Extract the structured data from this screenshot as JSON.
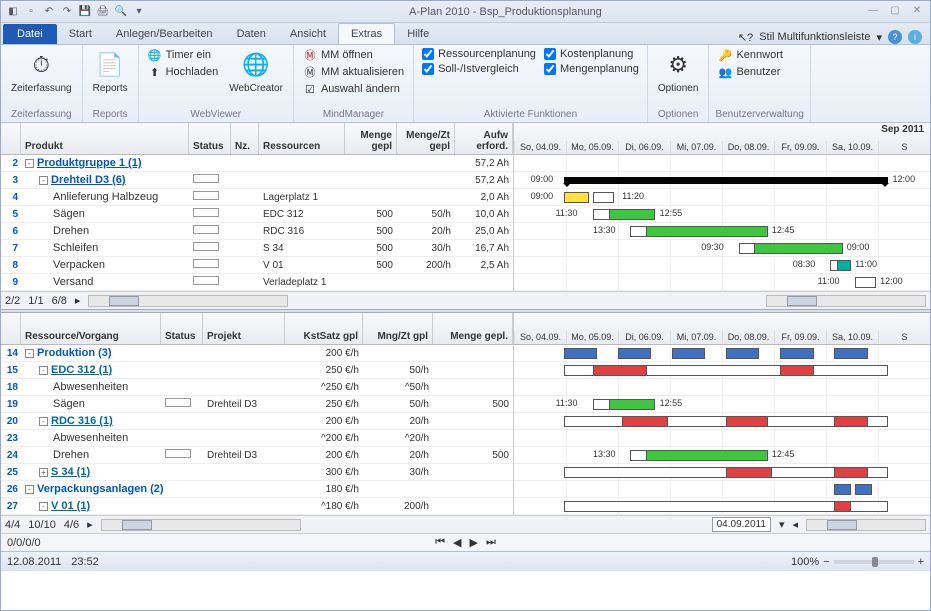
{
  "window": {
    "title": "A-Plan 2010 - Bsp_Produktionsplanung"
  },
  "tabs": {
    "file": "Datei",
    "items": [
      "Start",
      "Anlegen/Bearbeiten",
      "Daten",
      "Ansicht",
      "Extras",
      "Hilfe"
    ],
    "active": 4,
    "style_label": "Stil Multifunktionsleiste"
  },
  "ribbon": {
    "g0": {
      "label": "Zeiterfassung",
      "btn": "Zeiterfassung"
    },
    "g1": {
      "label": "Reports",
      "btn": "Reports"
    },
    "g2": {
      "label": "WebViewer",
      "btn": "WebCreator",
      "a": "Timer ein",
      "b": "Hochladen"
    },
    "g3": {
      "label": "MindManager",
      "a": "MM öffnen",
      "b": "MM aktualisieren",
      "c": "Auswahl ändern"
    },
    "g4": {
      "label": "Aktivierte Funktionen",
      "a": "Ressourcenplanung",
      "b": "Soll-/Istvergleich",
      "c": "Kostenplanung",
      "d": "Mengenplanung"
    },
    "g5": {
      "label": "Optionen",
      "btn": "Optionen"
    },
    "g6": {
      "label": "Benutzerverwaltung",
      "a": "Kennwort",
      "b": "Benutzer"
    }
  },
  "topgrid": {
    "hdr": {
      "c0": "Produkt",
      "c1": "Status",
      "c2": "Nz.",
      "c3": "Ressourcen",
      "c4": "Menge gepl",
      "c5": "Menge/Zt gepl",
      "c6": "Aufw erford."
    },
    "month": "Sep 2011",
    "days": [
      "So, 04.09.",
      "Mo, 05.09.",
      "Di, 06.09.",
      "Mi, 07.09.",
      "Do, 08.09.",
      "Fr, 09.09.",
      "Sa, 10.09.",
      "S"
    ],
    "rows": [
      {
        "n": "2",
        "ind": 0,
        "exp": "-",
        "name": "Produktgruppe 1 (1)",
        "cls": "grp",
        "m3": "57,2 Ah",
        "u": 1
      },
      {
        "n": "3",
        "ind": 1,
        "exp": "-",
        "name": "Drehteil D3 (6)",
        "cls": "grp",
        "stat": 1,
        "m3": "57,2 Ah",
        "u": 1
      },
      {
        "n": "4",
        "ind": 2,
        "name": "Anlieferung Halbzeug",
        "stat": 1,
        "res": "Lagerplatz 1",
        "m3": "2,0 Ah"
      },
      {
        "n": "5",
        "ind": 2,
        "name": "Sägen",
        "stat": 1,
        "res": "EDC 312",
        "m1": "500",
        "m2": "50/h",
        "m3": "10,0 Ah"
      },
      {
        "n": "6",
        "ind": 2,
        "name": "Drehen",
        "stat": 1,
        "res": "RDC 316",
        "m1": "500",
        "m2": "20/h",
        "m3": "25,0 Ah"
      },
      {
        "n": "7",
        "ind": 2,
        "name": "Schleifen",
        "stat": 1,
        "res": "S 34",
        "m1": "500",
        "m2": "30/h",
        "m3": "16,7 Ah"
      },
      {
        "n": "8",
        "ind": 2,
        "name": "Verpacken",
        "stat": 1,
        "res": "V 01",
        "m1": "500",
        "m2": "200/h",
        "m3": "2,5 Ah"
      },
      {
        "n": "9",
        "ind": 2,
        "name": "Versand",
        "stat": 1,
        "res": "Verladeplatz 1"
      }
    ],
    "gantt": [
      {
        "bars": []
      },
      {
        "bars": [
          {
            "t": "sum",
            "l": 12,
            "w": 78
          }
        ],
        "labels": [
          {
            "x": 4,
            "t": "09:00"
          },
          {
            "x": 91,
            "t": "12:00"
          }
        ]
      },
      {
        "bars": [
          {
            "c": "yel",
            "l": 12,
            "w": 6
          },
          {
            "c": "white",
            "l": 19,
            "w": 5
          }
        ],
        "labels": [
          {
            "x": 4,
            "t": "09:00"
          },
          {
            "x": 26,
            "t": "11:20"
          }
        ]
      },
      {
        "bars": [
          {
            "c": "grn",
            "l": 19,
            "w": 15
          },
          {
            "c": "white",
            "l": 19,
            "w": 4
          }
        ],
        "labels": [
          {
            "x": 10,
            "t": "11:30"
          },
          {
            "x": 35,
            "t": "12:55"
          }
        ]
      },
      {
        "bars": [
          {
            "c": "grn",
            "l": 28,
            "w": 33
          },
          {
            "c": "white",
            "l": 28,
            "w": 4
          }
        ],
        "labels": [
          {
            "x": 19,
            "t": "13:30"
          },
          {
            "x": 62,
            "t": "12:45"
          }
        ]
      },
      {
        "bars": [
          {
            "c": "grn",
            "l": 54,
            "w": 25
          },
          {
            "c": "white",
            "l": 54,
            "w": 4
          }
        ],
        "labels": [
          {
            "x": 45,
            "t": "09:30"
          },
          {
            "x": 80,
            "t": "09:00"
          }
        ]
      },
      {
        "bars": [
          {
            "c": "teal",
            "l": 76,
            "w": 5
          },
          {
            "c": "white",
            "l": 76,
            "w": 2
          }
        ],
        "labels": [
          {
            "x": 67,
            "t": "08:30"
          },
          {
            "x": 82,
            "t": "11:00"
          }
        ]
      },
      {
        "bars": [
          {
            "c": "white",
            "l": 82,
            "w": 5
          }
        ],
        "labels": [
          {
            "x": 73,
            "t": "11:00"
          },
          {
            "x": 88,
            "t": "12:00"
          }
        ]
      }
    ],
    "pager": {
      "a": "2/2",
      "b": "1/1",
      "c": "6/8"
    }
  },
  "botgrid": {
    "hdr": {
      "c0": "Ressource/Vorgang",
      "c1": "Status",
      "c2": "Projekt",
      "c3": "KstSatz gpl",
      "c4": "Mng/Zt gpl",
      "c5": "Menge gepl."
    },
    "rows": [
      {
        "n": "14",
        "ind": 0,
        "exp": "-",
        "name": "Produktion (3)",
        "cls": "grp",
        "k": "200 €/h"
      },
      {
        "n": "15",
        "ind": 1,
        "exp": "-",
        "name": "EDC 312 (1)",
        "cls": "grp2",
        "k": "250 €/h",
        "mz": "50/h"
      },
      {
        "n": "18",
        "ind": 2,
        "name": "Abwesenheiten",
        "k": "^250 €/h",
        "mz": "^50/h"
      },
      {
        "n": "19",
        "ind": 2,
        "name": "Sägen",
        "stat": 1,
        "proj": "Drehteil D3",
        "k": "250 €/h",
        "mz": "50/h",
        "mg": "500"
      },
      {
        "n": "20",
        "ind": 1,
        "exp": "-",
        "name": "RDC 316 (1)",
        "cls": "grp2",
        "k": "200 €/h",
        "mz": "20/h"
      },
      {
        "n": "23",
        "ind": 2,
        "name": "Abwesenheiten",
        "k": "^200 €/h",
        "mz": "^20/h"
      },
      {
        "n": "24",
        "ind": 2,
        "name": "Drehen",
        "stat": 1,
        "proj": "Drehteil D3",
        "k": "200 €/h",
        "mz": "20/h",
        "mg": "500"
      },
      {
        "n": "25",
        "ind": 1,
        "exp": "+",
        "name": "S 34 (1)",
        "cls": "grp2",
        "k": "300 €/h",
        "mz": "30/h"
      },
      {
        "n": "26",
        "ind": 0,
        "exp": "-",
        "name": "Verpackungsanlagen (2)",
        "cls": "grp",
        "k": "180 €/h"
      },
      {
        "n": "27",
        "ind": 1,
        "exp": "-",
        "name": "V 01 (1)",
        "cls": "grp2",
        "k": "^180 €/h",
        "mz": "200/h"
      }
    ],
    "gantt": [
      {
        "bars": [
          {
            "c": "blue",
            "l": 12,
            "w": 8
          },
          {
            "c": "blue",
            "l": 25,
            "w": 8
          },
          {
            "c": "blue",
            "l": 38,
            "w": 8
          },
          {
            "c": "blue",
            "l": 51,
            "w": 8
          },
          {
            "c": "blue",
            "l": 64,
            "w": 8
          },
          {
            "c": "blue",
            "l": 77,
            "w": 8
          }
        ]
      },
      {
        "bars": [
          {
            "c": "white",
            "l": 12,
            "w": 78
          },
          {
            "c": "red",
            "l": 19,
            "w": 13
          },
          {
            "c": "red",
            "l": 64,
            "w": 8
          }
        ]
      },
      {
        "bars": []
      },
      {
        "bars": [
          {
            "c": "grn",
            "l": 19,
            "w": 15
          },
          {
            "c": "white",
            "l": 19,
            "w": 4
          }
        ],
        "labels": [
          {
            "x": 10,
            "t": "11:30"
          },
          {
            "x": 35,
            "t": "12:55"
          }
        ]
      },
      {
        "bars": [
          {
            "c": "white",
            "l": 12,
            "w": 78
          },
          {
            "c": "red",
            "l": 26,
            "w": 11
          },
          {
            "c": "red",
            "l": 51,
            "w": 10
          },
          {
            "c": "red",
            "l": 77,
            "w": 8
          }
        ]
      },
      {
        "bars": []
      },
      {
        "bars": [
          {
            "c": "grn",
            "l": 28,
            "w": 33
          },
          {
            "c": "white",
            "l": 28,
            "w": 4
          }
        ],
        "labels": [
          {
            "x": 19,
            "t": "13:30"
          },
          {
            "x": 62,
            "t": "12:45"
          }
        ]
      },
      {
        "bars": [
          {
            "c": "white",
            "l": 12,
            "w": 78
          },
          {
            "c": "red",
            "l": 51,
            "w": 11
          },
          {
            "c": "red",
            "l": 77,
            "w": 8
          }
        ]
      },
      {
        "bars": [
          {
            "c": "blue",
            "l": 77,
            "w": 4
          },
          {
            "c": "blue",
            "l": 82,
            "w": 4
          }
        ]
      },
      {
        "bars": [
          {
            "c": "white",
            "l": 12,
            "w": 78
          },
          {
            "c": "red",
            "l": 77,
            "w": 4
          }
        ]
      }
    ],
    "pager": {
      "a": "4/4",
      "b": "10/10",
      "c": "4/6"
    },
    "date": "04.09.2011"
  },
  "nav": {
    "counter": "0/0/0/0"
  },
  "status": {
    "date": "12.08.2011",
    "time": "23:52",
    "zoom": "100%"
  }
}
